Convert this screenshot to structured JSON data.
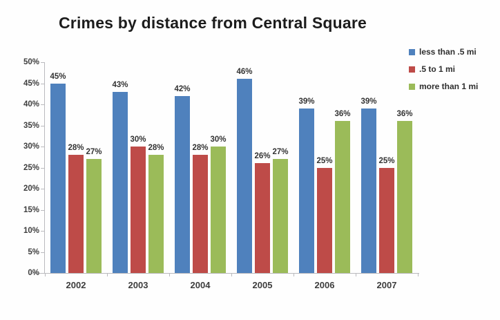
{
  "title": "Crimes by distance from Central Square",
  "chart_data": {
    "type": "bar",
    "title": "Crimes by distance from Central Square",
    "categories": [
      "2002",
      "2003",
      "2004",
      "2005",
      "2006",
      "2007"
    ],
    "series": [
      {
        "name": "less than .5 mi",
        "color": "#4F81BD",
        "values": [
          45,
          43,
          42,
          46,
          39,
          39
        ]
      },
      {
        "name": ".5 to 1 mi",
        "color": "#BE4B48",
        "values": [
          28,
          30,
          28,
          26,
          25,
          25
        ]
      },
      {
        "name": "more than 1 mi",
        "color": "#9BBB59",
        "values": [
          27,
          28,
          30,
          27,
          36,
          36
        ]
      }
    ],
    "xlabel": "",
    "ylabel": "",
    "ylim": [
      0,
      50
    ],
    "y_ticks": [
      "0%",
      "5%",
      "10%",
      "15%",
      "20%",
      "25%",
      "30%",
      "35%",
      "40%",
      "45%",
      "50%"
    ],
    "grid": false,
    "data_labels": true,
    "data_label_format": "{value}%",
    "legend_position": "top-right"
  }
}
